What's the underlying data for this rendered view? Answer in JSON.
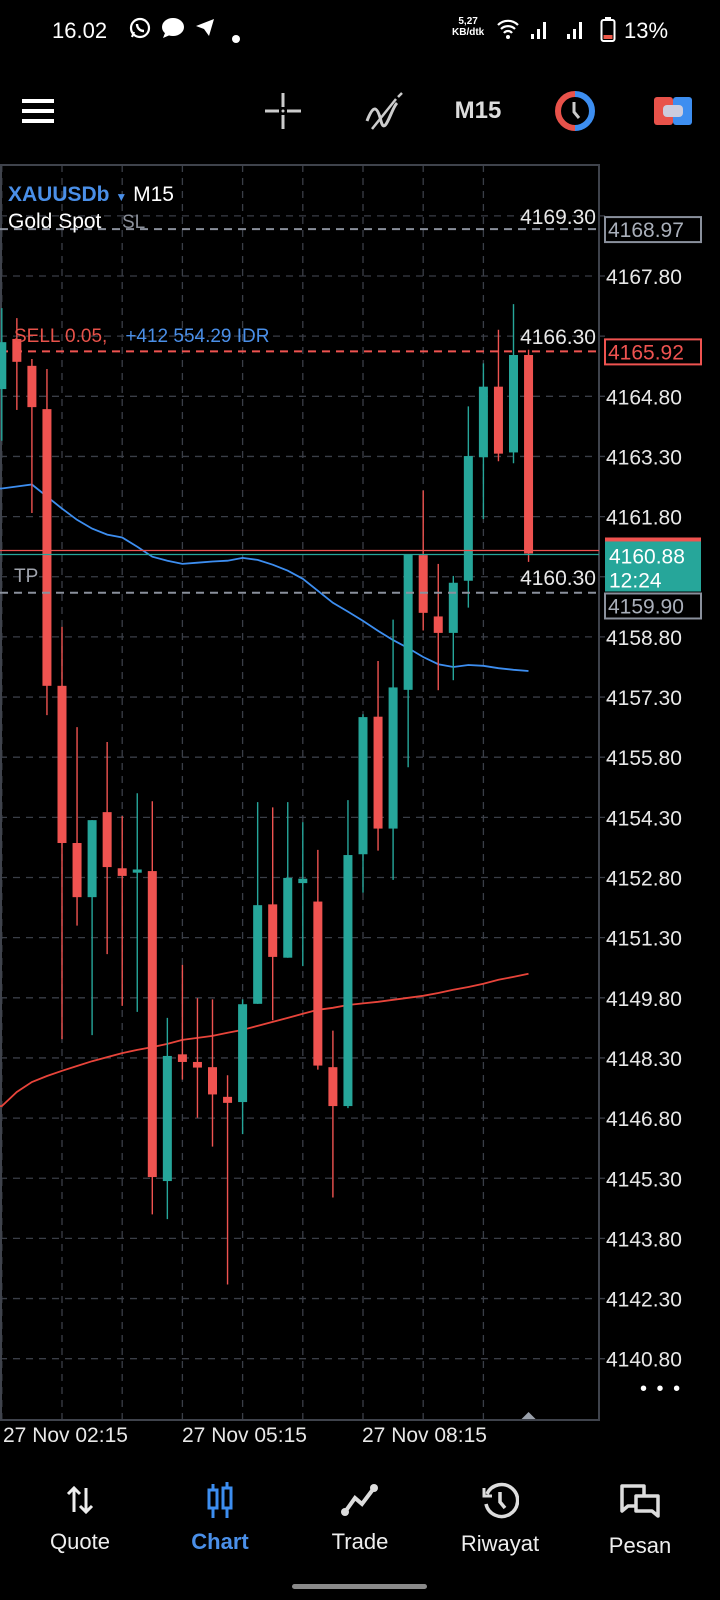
{
  "status_bar": {
    "time": "16.02",
    "net_speed_value": "5,27",
    "net_speed_unit": "KB/dtk",
    "battery": "13%",
    "icons": [
      "whatsapp-icon",
      "chat-icon",
      "telegram-icon",
      "dot-icon",
      "wifi-icon",
      "signal-icon",
      "signal-icon",
      "battery-icon"
    ]
  },
  "toolbar": {
    "timeframe": "M15",
    "icons": [
      "menu-icon",
      "crosshair-icon",
      "indicators-icon",
      "clock-icon",
      "trade-toggle-icon"
    ]
  },
  "chart_header": {
    "symbol": "XAUUSDb",
    "timeframe": "M15",
    "description": "Gold Spot"
  },
  "orders": {
    "sl_tag": "SL",
    "tp_tag": "TP",
    "side_text": "SELL 0.05,",
    "profit_text": "+412 554.29 IDR",
    "sl_price": "4168.97",
    "entry_price": "4165.92",
    "tp_price": "4159.90",
    "current_price": "4160.88",
    "countdown": "12:24"
  },
  "colors": {
    "bull": "#26a69a",
    "bear": "#ef5350",
    "ma_fast": "#3d8ef0",
    "ma_slow": "#e8443a",
    "accent": "#4a8fe8"
  },
  "chart_data": {
    "type": "candlestick",
    "grid": true,
    "ylim": [
      4139.3,
      4170.0
    ],
    "y_ticks": [
      "4169.30",
      "4167.80",
      "4166.30",
      "4164.80",
      "4163.30",
      "4161.80",
      "4160.30",
      "4158.80",
      "4157.30",
      "4155.80",
      "4154.30",
      "4152.80",
      "4151.30",
      "4149.80",
      "4148.30",
      "4146.80",
      "4145.30",
      "4143.80",
      "4142.30",
      "4140.80"
    ],
    "x_tick_labels": [
      "27 Nov 02:15",
      "27 Nov 05:15",
      "27 Nov 08:15"
    ],
    "x": [
      "01:15",
      "01:30",
      "01:45",
      "02:00",
      "02:15",
      "02:30",
      "02:45",
      "03:00",
      "03:15",
      "03:30",
      "03:45",
      "04:00",
      "04:15",
      "04:30",
      "04:45",
      "05:00",
      "05:15",
      "05:30",
      "05:45",
      "06:00",
      "06:15",
      "06:30",
      "06:45",
      "07:00",
      "07:15",
      "07:30",
      "07:45",
      "08:00",
      "08:15",
      "08:30",
      "08:45",
      "09:00",
      "09:15",
      "09:30",
      "09:45",
      "10:00"
    ],
    "ohlc": [
      [
        4164.98,
        4167.0,
        4163.69,
        4166.15
      ],
      [
        4166.23,
        4166.75,
        4164.46,
        4165.66
      ],
      [
        4165.56,
        4165.73,
        4161.89,
        4164.53
      ],
      [
        4164.48,
        4165.48,
        4156.85,
        4157.58
      ],
      [
        4157.58,
        4159.05,
        4148.77,
        4153.66
      ],
      [
        4153.66,
        4156.55,
        4151.6,
        4152.31
      ],
      [
        4152.31,
        4154.23,
        4148.87,
        4154.23
      ],
      [
        4154.43,
        4156.18,
        4150.89,
        4153.06
      ],
      [
        4153.03,
        4154.33,
        4149.6,
        4152.84
      ],
      [
        4152.92,
        4154.9,
        4149.45,
        4153.0
      ],
      [
        4152.96,
        4154.7,
        4144.4,
        4145.33
      ],
      [
        4145.23,
        4149.3,
        4144.28,
        4148.35
      ],
      [
        4148.39,
        4150.62,
        4147.76,
        4148.2
      ],
      [
        4148.2,
        4149.79,
        4146.81,
        4148.06
      ],
      [
        4148.07,
        4149.76,
        4146.09,
        4147.39
      ],
      [
        4147.33,
        4147.87,
        4142.65,
        4147.18
      ],
      [
        4147.2,
        4149.76,
        4146.4,
        4149.64
      ],
      [
        4149.65,
        4154.68,
        4149.65,
        4152.11
      ],
      [
        4152.13,
        4154.55,
        4149.24,
        4150.82
      ],
      [
        4150.8,
        4154.68,
        4150.8,
        4152.79
      ],
      [
        4152.66,
        4154.18,
        4150.59,
        4152.77
      ],
      [
        4152.2,
        4153.49,
        4148.01,
        4148.11
      ],
      [
        4148.07,
        4148.98,
        4144.82,
        4147.1
      ],
      [
        4147.1,
        4154.73,
        4147.05,
        4153.36
      ],
      [
        4153.38,
        4156.87,
        4152.42,
        4156.8
      ],
      [
        4156.81,
        4158.2,
        4153.47,
        4154.02
      ],
      [
        4154.02,
        4159.23,
        4152.74,
        4157.54
      ],
      [
        4157.48,
        4160.86,
        4155.55,
        4160.85
      ],
      [
        4160.84,
        4162.45,
        4158.96,
        4159.4
      ],
      [
        4159.31,
        4160.62,
        4157.47,
        4158.9
      ],
      [
        4158.9,
        4160.32,
        4157.72,
        4160.15
      ],
      [
        4160.2,
        4164.55,
        4159.53,
        4163.31
      ],
      [
        4163.28,
        4165.62,
        4161.74,
        4165.04
      ],
      [
        4165.04,
        4166.46,
        4163.18,
        4163.37
      ],
      [
        4163.4,
        4167.1,
        4163.13,
        4165.83
      ],
      [
        4165.83,
        4165.96,
        4160.67,
        4160.88
      ]
    ],
    "ma_fast": [
      4162.5,
      4162.55,
      4162.6,
      4162.3,
      4162.0,
      4161.72,
      4161.5,
      4161.35,
      4161.28,
      4161.05,
      4160.8,
      4160.7,
      4160.62,
      4160.65,
      4160.68,
      4160.7,
      4160.77,
      4160.72,
      4160.6,
      4160.45,
      4160.25,
      4159.95,
      4159.65,
      4159.43,
      4159.2,
      4158.95,
      4158.72,
      4158.52,
      4158.3,
      4158.12,
      4158.05,
      4158.1,
      4158.08,
      4158.02,
      4157.98,
      4157.95
    ],
    "ma_slow": [
      4147.1,
      4147.45,
      4147.7,
      4147.85,
      4147.98,
      4148.1,
      4148.22,
      4148.32,
      4148.42,
      4148.5,
      4148.57,
      4148.65,
      4148.75,
      4148.8,
      4148.85,
      4148.93,
      4149.0,
      4149.1,
      4149.2,
      4149.3,
      4149.4,
      4149.5,
      4149.55,
      4149.62,
      4149.66,
      4149.7,
      4149.75,
      4149.8,
      4149.85,
      4149.92,
      4150.0,
      4150.07,
      4150.15,
      4150.25,
      4150.32,
      4150.4
    ]
  },
  "more_label": "• • •",
  "bottom_nav": {
    "items": [
      {
        "label": "Quote",
        "icon": "quote-arrows-icon"
      },
      {
        "label": "Chart",
        "icon": "chart-candles-icon",
        "active": true
      },
      {
        "label": "Trade",
        "icon": "trade-line-icon"
      },
      {
        "label": "Riwayat",
        "icon": "history-icon"
      },
      {
        "label": "Pesan",
        "icon": "messages-icon"
      }
    ]
  }
}
